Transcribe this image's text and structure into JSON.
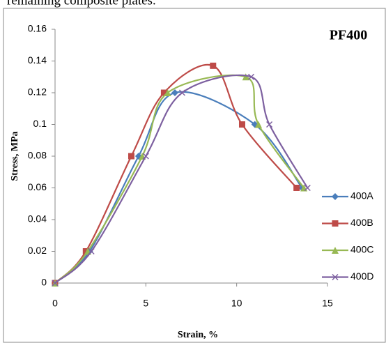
{
  "page_text": "remaining composite plates.",
  "chart_data": {
    "type": "scatter-smooth",
    "title": "PF400",
    "x_label": "Strain, %",
    "y_label": "Stress, MPa",
    "xlim": [
      0,
      15
    ],
    "xticks": [
      0,
      5,
      10,
      15
    ],
    "ylim": [
      0,
      0.16
    ],
    "yticks": [
      0,
      0.02,
      0.04,
      0.06,
      0.08,
      0.1,
      0.12,
      0.14,
      0.16
    ],
    "series": [
      {
        "name": "400A",
        "color": "#4a7ebb",
        "marker": "diamond",
        "x": [
          0,
          1.9,
          4.6,
          6.6,
          11.0,
          13.6
        ],
        "values": [
          0,
          0.02,
          0.08,
          0.12,
          0.1,
          0.06
        ]
      },
      {
        "name": "400B",
        "color": "#be4b48",
        "marker": "square",
        "x": [
          0,
          1.7,
          4.2,
          6.0,
          8.7,
          10.3,
          13.3
        ],
        "values": [
          0,
          0.02,
          0.08,
          0.12,
          0.137,
          0.1,
          0.06
        ]
      },
      {
        "name": "400C",
        "color": "#98b954",
        "marker": "triangle",
        "x": [
          0,
          1.8,
          4.8,
          6.2,
          10.5,
          11.2,
          13.7
        ],
        "values": [
          0,
          0.02,
          0.08,
          0.12,
          0.13,
          0.1,
          0.06
        ]
      },
      {
        "name": "400D",
        "color": "#7d60a0",
        "marker": "x",
        "x": [
          0,
          2.0,
          5.0,
          7.0,
          10.8,
          11.8,
          13.9
        ],
        "values": [
          0,
          0.02,
          0.08,
          0.12,
          0.13,
          0.1,
          0.06
        ]
      }
    ]
  }
}
